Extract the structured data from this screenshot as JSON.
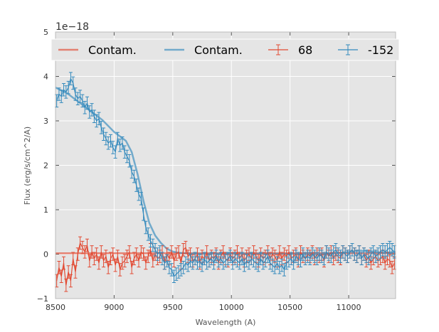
{
  "chart_data": {
    "type": "line",
    "title": "",
    "xlabel": "Wavelength (A)",
    "ylabel": "Flux (erg/s/cm^2/A)",
    "xlim": [
      8500,
      11400
    ],
    "ylim": [
      -1,
      5
    ],
    "y_offset_label": "1e−18",
    "x_ticks": [
      8500,
      9000,
      9500,
      10000,
      10500,
      11000
    ],
    "y_ticks": [
      -1,
      0,
      1,
      2,
      3,
      4,
      5
    ],
    "grid": true,
    "legend_position": "top",
    "series": [
      {
        "name": "Contam.",
        "kind": "model",
        "color": "#E24A33",
        "x": [
          8500,
          8700,
          9000,
          9300,
          9600,
          10000,
          10500,
          11000,
          11400
        ],
        "y": [
          0.02,
          0.02,
          0.02,
          0.02,
          0.02,
          0.02,
          0.02,
          0.02,
          0.02
        ]
      },
      {
        "name": "Contam.",
        "kind": "model",
        "color": "#348ABD",
        "x": [
          8500,
          8600,
          8700,
          8800,
          8900,
          9000,
          9100,
          9150,
          9200,
          9250,
          9300,
          9350,
          9400,
          9450,
          9500,
          9550,
          9600,
          9700,
          9800,
          9900,
          10000,
          10200,
          10400,
          10600,
          10800,
          11000,
          11100,
          11200,
          11300,
          11400
        ],
        "y": [
          3.75,
          3.62,
          3.42,
          3.22,
          3.02,
          2.75,
          2.55,
          2.3,
          1.8,
          1.2,
          0.7,
          0.42,
          0.25,
          0.12,
          0.06,
          0.03,
          0.02,
          0.01,
          0.01,
          0.01,
          0.01,
          0.01,
          0.01,
          0.0,
          0.0,
          0.05,
          0.08,
          0.06,
          0.03,
          0.05
        ]
      },
      {
        "name": "68",
        "kind": "errorbar",
        "color": "#E24A33",
        "x": [
          8510,
          8530,
          8550,
          8570,
          8590,
          8610,
          8630,
          8650,
          8670,
          8690,
          8710,
          8730,
          8750,
          8770,
          8790,
          8810,
          8830,
          8850,
          8870,
          8890,
          8910,
          8930,
          8950,
          8970,
          8990,
          9010,
          9030,
          9050,
          9070,
          9090,
          9110,
          9130,
          9150,
          9170,
          9190,
          9210,
          9230,
          9250,
          9270,
          9290,
          9310,
          9330,
          9350,
          9370,
          9390,
          9410,
          9430,
          9450,
          9470,
          9490,
          9510,
          9530,
          9550,
          9570,
          9590,
          9610,
          9630,
          9650,
          9670,
          9690,
          9710,
          9730,
          9750,
          9770,
          9790,
          9810,
          9830,
          9850,
          9870,
          9890,
          9910,
          9930,
          9950,
          9970,
          9990,
          10010,
          10030,
          10050,
          10070,
          10090,
          10110,
          10130,
          10150,
          10170,
          10190,
          10210,
          10230,
          10250,
          10270,
          10290,
          10310,
          10330,
          10350,
          10370,
          10390,
          10410,
          10430,
          10450,
          10470,
          10490,
          10510,
          10530,
          10550,
          10570,
          10590,
          10610,
          10630,
          10650,
          10670,
          10690,
          10710,
          10730,
          10750,
          10770,
          10790,
          10810,
          10830,
          10850,
          10870,
          10890,
          10910,
          10930,
          10950,
          10970,
          10990,
          11010,
          11030,
          11050,
          11070,
          11090,
          11110,
          11130,
          11150,
          11170,
          11190,
          11210,
          11230,
          11250,
          11270,
          11290,
          11310,
          11330,
          11350,
          11370,
          11390
        ],
        "y": [
          -0.6,
          -0.3,
          -0.5,
          -0.2,
          -0.7,
          -0.4,
          -0.6,
          -0.1,
          -0.4,
          0.0,
          0.25,
          0.15,
          0.05,
          0.2,
          -0.15,
          0.05,
          -0.1,
          0.0,
          -0.2,
          0.05,
          -0.15,
          -0.05,
          -0.3,
          -0.1,
          0.0,
          -0.25,
          -0.05,
          -0.35,
          -0.2,
          -0.15,
          -0.05,
          0.05,
          -0.3,
          -0.1,
          0.0,
          -0.15,
          0.05,
          0.0,
          -0.2,
          -0.05,
          0.1,
          -0.15,
          0.0,
          -0.1,
          -0.05,
          0.05,
          -0.2,
          0.0,
          -0.1,
          0.05,
          -0.15,
          0.0,
          0.05,
          -0.2,
          0.1,
          0.15,
          -0.05,
          0.0,
          -0.15,
          -0.1,
          0.0,
          -0.2,
          -0.05,
          -0.1,
          0.05,
          -0.15,
          -0.05,
          -0.1,
          0.0,
          -0.2,
          -0.05,
          0.05,
          -0.1,
          -0.15,
          0.0,
          -0.1,
          -0.05,
          0.05,
          -0.1,
          0.0,
          -0.15,
          -0.05,
          0.0,
          -0.1,
          0.05,
          -0.05,
          -0.15,
          0.0,
          -0.1,
          -0.05,
          0.05,
          -0.1,
          0.0,
          -0.05,
          -0.15,
          0.05,
          -0.1,
          0.0,
          -0.05,
          0.05,
          -0.1,
          -0.05,
          0.0,
          -0.15,
          0.05,
          -0.05,
          -0.1,
          0.0,
          -0.05,
          0.05,
          -0.1,
          0.0,
          -0.05,
          0.0,
          -0.15,
          0.05,
          -0.05,
          0.05,
          -0.1,
          0.0,
          -0.05,
          -0.1,
          0.05,
          0.0,
          -0.05,
          0.05,
          0.1,
          0.0,
          -0.05,
          0.05,
          -0.1,
          0.0,
          -0.15,
          -0.05,
          -0.2,
          -0.1,
          -0.05,
          -0.15,
          -0.1,
          -0.05,
          -0.2,
          -0.1,
          -0.15,
          -0.3,
          -0.2
        ],
        "err": 0.14
      },
      {
        "name": "-152",
        "kind": "errorbar",
        "color": "#348ABD",
        "x": [
          8510,
          8530,
          8550,
          8570,
          8590,
          8610,
          8630,
          8650,
          8670,
          8690,
          8710,
          8730,
          8750,
          8770,
          8790,
          8810,
          8830,
          8850,
          8870,
          8890,
          8910,
          8930,
          8950,
          8970,
          8990,
          9010,
          9030,
          9050,
          9070,
          9090,
          9110,
          9130,
          9150,
          9170,
          9190,
          9210,
          9230,
          9250,
          9270,
          9290,
          9310,
          9330,
          9350,
          9370,
          9390,
          9410,
          9430,
          9450,
          9470,
          9490,
          9510,
          9530,
          9550,
          9570,
          9590,
          9610,
          9630,
          9650,
          9670,
          9690,
          9710,
          9730,
          9750,
          9770,
          9790,
          9810,
          9830,
          9850,
          9870,
          9890,
          9910,
          9930,
          9950,
          9970,
          9990,
          10010,
          10030,
          10050,
          10070,
          10090,
          10110,
          10130,
          10150,
          10170,
          10190,
          10210,
          10230,
          10250,
          10270,
          10290,
          10310,
          10330,
          10350,
          10370,
          10390,
          10410,
          10430,
          10450,
          10470,
          10490,
          10510,
          10530,
          10550,
          10570,
          10590,
          10610,
          10630,
          10650,
          10670,
          10690,
          10710,
          10730,
          10750,
          10770,
          10790,
          10810,
          10830,
          10850,
          10870,
          10890,
          10910,
          10930,
          10950,
          10970,
          10990,
          11010,
          11030,
          11050,
          11070,
          11090,
          11110,
          11130,
          11150,
          11170,
          11190,
          11210,
          11230,
          11250,
          11270,
          11290,
          11310,
          11330,
          11350,
          11370,
          11390
        ],
        "y": [
          3.45,
          3.6,
          3.55,
          3.7,
          3.65,
          3.75,
          3.95,
          3.85,
          3.6,
          3.5,
          3.55,
          3.45,
          3.3,
          3.4,
          3.2,
          3.25,
          3.1,
          3.0,
          3.05,
          2.85,
          2.7,
          2.6,
          2.5,
          2.55,
          2.4,
          2.3,
          2.6,
          2.45,
          2.5,
          2.3,
          2.2,
          2.1,
          1.85,
          1.75,
          1.55,
          1.35,
          1.25,
          0.9,
          0.6,
          0.45,
          0.3,
          0.2,
          0.1,
          0.0,
          0.05,
          -0.1,
          -0.2,
          -0.15,
          -0.3,
          -0.35,
          -0.5,
          -0.45,
          -0.4,
          -0.35,
          -0.3,
          -0.2,
          -0.25,
          -0.15,
          -0.2,
          -0.1,
          -0.2,
          -0.15,
          -0.25,
          -0.1,
          -0.2,
          -0.15,
          -0.1,
          -0.2,
          -0.05,
          -0.15,
          -0.1,
          -0.2,
          -0.15,
          -0.1,
          -0.05,
          -0.2,
          -0.1,
          -0.15,
          -0.2,
          -0.1,
          -0.25,
          -0.15,
          -0.2,
          -0.1,
          -0.15,
          -0.2,
          -0.25,
          -0.1,
          -0.2,
          -0.15,
          -0.05,
          -0.2,
          -0.25,
          -0.3,
          -0.2,
          -0.3,
          -0.25,
          -0.35,
          -0.2,
          -0.15,
          -0.1,
          -0.2,
          -0.05,
          -0.1,
          -0.15,
          0.0,
          -0.1,
          -0.05,
          -0.1,
          0.0,
          -0.05,
          -0.1,
          0.0,
          -0.05,
          -0.1,
          0.05,
          0.0,
          -0.05,
          0.05,
          0.1,
          0.0,
          -0.05,
          0.05,
          0.0,
          -0.05,
          0.05,
          0.1,
          0.0,
          -0.05,
          0.05,
          -0.1,
          0.0,
          -0.05,
          -0.1,
          0.0,
          0.05,
          -0.05,
          0.0,
          0.05,
          0.1,
          0.05,
          0.1,
          0.15,
          0.1,
          0.05
        ],
        "err": 0.14
      }
    ]
  }
}
